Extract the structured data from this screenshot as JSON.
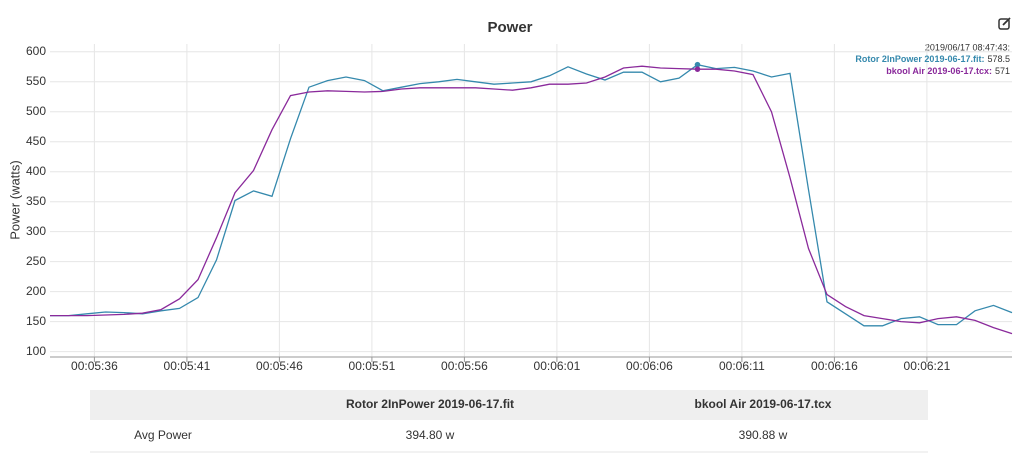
{
  "chart_data": {
    "type": "line",
    "title": "Power",
    "y_label": "Power (watts)",
    "x": [
      334,
      335,
      336,
      337,
      338,
      339,
      340,
      341,
      342,
      343,
      344,
      345,
      346,
      347,
      348,
      349,
      350,
      351,
      352,
      353,
      354,
      355,
      356,
      357,
      358,
      359,
      360,
      361,
      362,
      363,
      364,
      365,
      366,
      367,
      368,
      369,
      370,
      371,
      372,
      373,
      374,
      375,
      376,
      377,
      378,
      379,
      380,
      381,
      382,
      383,
      384,
      385,
      386
    ],
    "xlim": [
      334,
      386
    ],
    "xticks": [
      {
        "value": 336.4,
        "label": "00:05:36"
      },
      {
        "value": 341.4,
        "label": "00:05:41"
      },
      {
        "value": 346.4,
        "label": "00:05:46"
      },
      {
        "value": 351.4,
        "label": "00:05:51"
      },
      {
        "value": 356.4,
        "label": "00:05:56"
      },
      {
        "value": 361.4,
        "label": "00:06:01"
      },
      {
        "value": 366.4,
        "label": "00:06:06"
      },
      {
        "value": 371.4,
        "label": "00:06:11"
      },
      {
        "value": 376.4,
        "label": "00:06:16"
      },
      {
        "value": 381.4,
        "label": "00:06:21"
      }
    ],
    "ylim": [
      91,
      613
    ],
    "yticks": [
      100,
      150,
      200,
      250,
      300,
      350,
      400,
      450,
      500,
      550,
      600
    ],
    "grid": true,
    "series": [
      {
        "name": "Rotor 2InPower 2019-06-17.fit",
        "color": "#3589ad",
        "values": [
          160,
          160,
          163,
          166,
          165,
          163,
          168,
          172,
          190,
          253,
          352,
          368,
          359,
          455,
          541,
          552,
          558,
          552,
          535,
          541,
          547,
          550,
          554,
          550,
          546,
          548,
          550,
          560,
          575,
          563,
          553,
          566,
          566,
          550,
          556,
          578.5,
          572,
          574,
          568,
          558,
          564,
          370,
          183,
          163,
          143,
          143,
          155,
          158,
          145,
          145,
          168,
          177,
          165
        ]
      },
      {
        "name": "bkool Air 2019-06-17.tcx",
        "color": "#8a2a9b",
        "values": [
          160,
          160,
          160,
          161,
          162,
          164,
          170,
          188,
          220,
          290,
          365,
          402,
          470,
          527,
          533,
          535,
          534,
          533,
          534,
          538,
          540,
          540,
          540,
          540,
          538,
          536,
          540,
          546,
          546,
          548,
          558,
          573,
          576,
          573,
          572,
          571,
          571,
          568,
          562,
          500,
          390,
          272,
          195,
          175,
          160,
          155,
          150,
          148,
          155,
          158,
          152,
          140,
          130
        ]
      }
    ],
    "tooltip": {
      "time": "2019/06/17 08:47:43:",
      "index": 35,
      "items": [
        {
          "label": "Rotor 2InPower 2019-06-17.fit:",
          "value": 578.5
        },
        {
          "label": "bkool Air 2019-06-17.tcx:",
          "value": 571
        }
      ]
    }
  },
  "table": {
    "header": [
      "Rotor 2InPower 2019-06-17.fit",
      "bkool Air 2019-06-17.tcx"
    ],
    "rows": [
      [
        "Avg Power",
        "394.80 w",
        "390.88 w"
      ]
    ]
  }
}
